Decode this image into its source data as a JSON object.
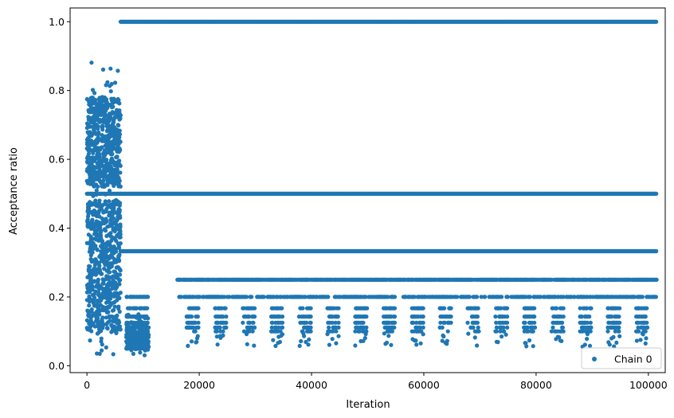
{
  "chart_data": {
    "type": "scatter",
    "xlabel": "Iteration",
    "ylabel": "Acceptance ratio",
    "xlim": [
      -3000,
      103000
    ],
    "ylim": [
      -0.02,
      1.04
    ],
    "xticks": [
      0,
      20000,
      40000,
      60000,
      80000,
      100000
    ],
    "xtick_labels": [
      "0",
      "20000",
      "40000",
      "60000",
      "80000",
      "100000"
    ],
    "yticks": [
      0.0,
      0.2,
      0.4,
      0.6,
      0.8,
      1.0
    ],
    "ytick_labels": [
      "0.0",
      "0.2",
      "0.4",
      "0.6",
      "0.8",
      "1.0"
    ],
    "grid": false,
    "legend_placement": "lower-right",
    "series": [
      {
        "name": "Chain 0",
        "color": "#1f77b4",
        "marker": "circle",
        "description_segments": [
          {
            "x_range": [
              0,
              6000
            ],
            "y_range": [
              0.03,
              0.89
            ],
            "dense_bands": [
              [
                0.52,
                0.78
              ],
              [
                0.1,
                0.48
              ]
            ]
          },
          {
            "x_range": [
              6000,
              101500
            ],
            "constant_levels": [
              1.0,
              0.5,
              0.333
            ]
          },
          {
            "x_range": [
              7000,
              11000
            ],
            "y_range": [
              0.03,
              0.2
            ]
          },
          {
            "x_range": [
              16000,
              101500
            ],
            "sparse_levels": [
              0.25,
              0.2,
              0.167,
              0.143,
              0.125,
              0.111,
              0.1
            ]
          }
        ]
      }
    ]
  }
}
